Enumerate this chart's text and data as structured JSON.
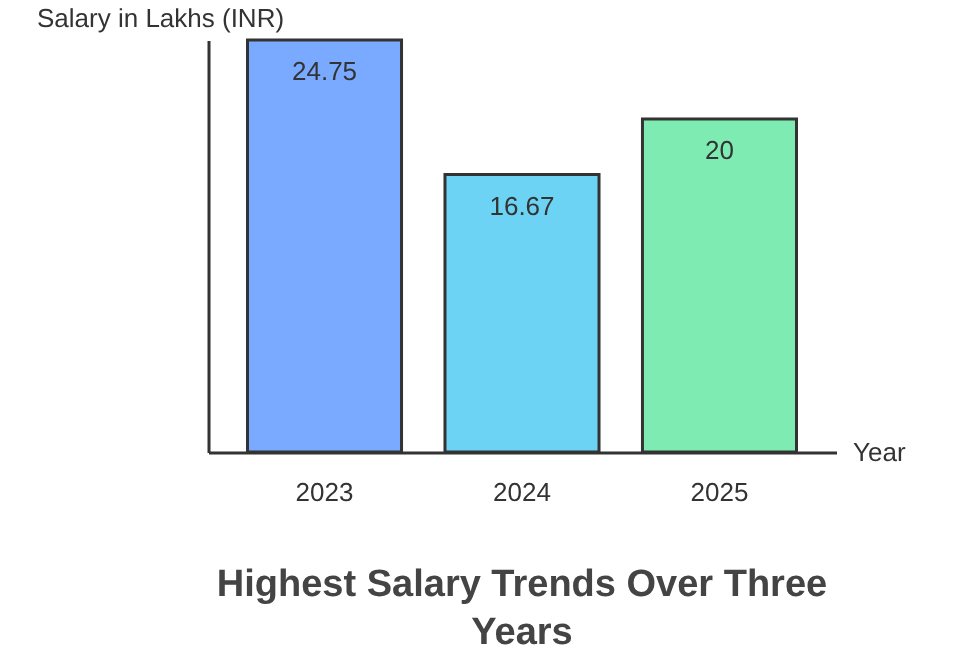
{
  "chart_data": {
    "type": "bar",
    "title": "Highest Salary Trends Over Three Years",
    "xlabel": "Year",
    "ylabel": "Salary in Lakhs (INR)",
    "categories": [
      "2023",
      "2024",
      "2025"
    ],
    "values": [
      24.75,
      16.67,
      20
    ],
    "colors": [
      "#7aaaff",
      "#6dd3f5",
      "#7eebb2"
    ],
    "data_labels": true,
    "grid": false,
    "legend": false
  }
}
